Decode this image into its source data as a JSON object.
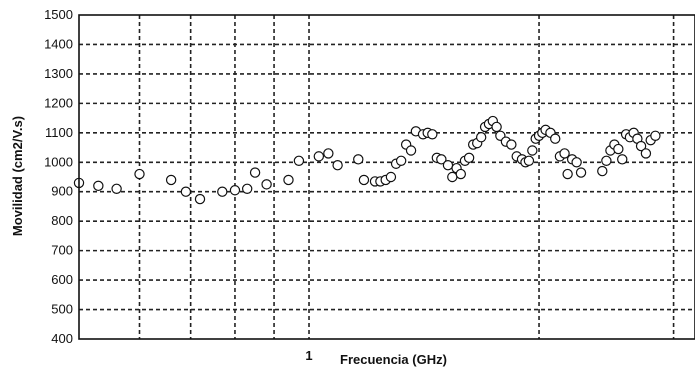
{
  "chart_data": {
    "type": "scatter",
    "xlabel": "Frecuencia (GHz)",
    "ylabel": "Movilidad (cm2/V.s)",
    "ylim": [
      400,
      1500
    ],
    "yticks": [
      400,
      500,
      600,
      700,
      800,
      900,
      1000,
      1100,
      1200,
      1300,
      1400,
      1500
    ],
    "xscale": "log",
    "xlim": [
      0.5,
      3.2
    ],
    "xtick_labels": [
      "1"
    ],
    "xtick_values": [
      1
    ],
    "x_gridlines": [
      0.6,
      0.7,
      0.8,
      0.9,
      1,
      2,
      3
    ],
    "grid": true,
    "series": [
      {
        "x": [
          0.5,
          0.53,
          0.56,
          0.6,
          0.66,
          0.69,
          0.72,
          0.77,
          0.8,
          0.83,
          0.85,
          0.88,
          0.94,
          0.97,
          1.03,
          1.06,
          1.09,
          1.16,
          1.18,
          1.22,
          1.24,
          1.26,
          1.28,
          1.3,
          1.32,
          1.34,
          1.36,
          1.38,
          1.41,
          1.43,
          1.45,
          1.47,
          1.49,
          1.52,
          1.54,
          1.56,
          1.58,
          1.6,
          1.62,
          1.64,
          1.66,
          1.68,
          1.7,
          1.72,
          1.74,
          1.76,
          1.78,
          1.81,
          1.84,
          1.87,
          1.9,
          1.92,
          1.94,
          1.96,
          1.98,
          2.0,
          2.02,
          2.04,
          2.07,
          2.1,
          2.13,
          2.16,
          2.18,
          2.21,
          2.24,
          2.27,
          2.42,
          2.45,
          2.48,
          2.51,
          2.54,
          2.57,
          2.6,
          2.63,
          2.66,
          2.69,
          2.72,
          2.76,
          2.8,
          2.84
        ],
        "y": [
          930,
          920,
          910,
          960,
          940,
          900,
          875,
          900,
          905,
          910,
          965,
          925,
          940,
          1005,
          1020,
          1030,
          990,
          1010,
          940,
          935,
          935,
          940,
          950,
          995,
          1005,
          1060,
          1040,
          1105,
          1095,
          1100,
          1095,
          1015,
          1010,
          990,
          950,
          980,
          960,
          1005,
          1015,
          1060,
          1065,
          1085,
          1120,
          1130,
          1140,
          1120,
          1090,
          1070,
          1060,
          1020,
          1010,
          1000,
          1005,
          1040,
          1080,
          1090,
          1100,
          1110,
          1100,
          1080,
          1020,
          1030,
          960,
          1010,
          1000,
          965,
          970,
          1005,
          1040,
          1060,
          1045,
          1010,
          1095,
          1085,
          1100,
          1080,
          1055,
          1030,
          1075,
          1090
        ]
      }
    ]
  }
}
